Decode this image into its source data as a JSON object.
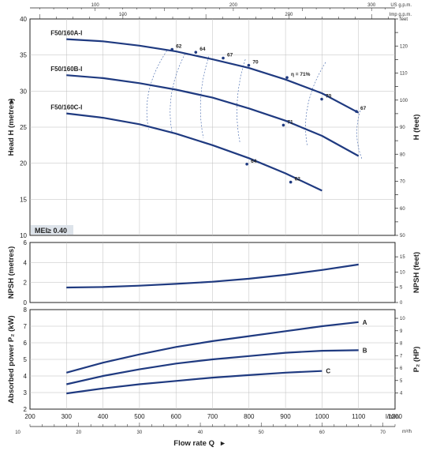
{
  "chart_data": [
    {
      "type": "line",
      "name": "head",
      "xlabel": "",
      "ylabel": "Head H  (metres)",
      "y2label": "H (feet)",
      "xlim": [
        200,
        1200
      ],
      "ylim": [
        10,
        40
      ],
      "y2lim": [
        50,
        130
      ],
      "yticks": [
        10,
        15,
        20,
        25,
        30,
        35,
        40
      ],
      "y2ticks": [
        50,
        55,
        60,
        65,
        70,
        75,
        80,
        85,
        90,
        95,
        100,
        105,
        110,
        115,
        120,
        125,
        130
      ],
      "y2tick_labels": [
        "50",
        "",
        "60",
        "",
        "70",
        "",
        "80",
        "",
        "90",
        "",
        "100",
        "",
        "110",
        "",
        "120",
        "",
        "feet"
      ],
      "top_axis_1": {
        "label": "US g.p.m.",
        "ticks": [
          100,
          200,
          300
        ]
      },
      "top_axis_2": {
        "label": "Imp g.p.m.",
        "ticks": [
          100,
          200
        ]
      },
      "series": [
        {
          "name": "F50/160A-I",
          "x": [
            300,
            400,
            500,
            600,
            700,
            800,
            900,
            1000,
            1100
          ],
          "y": [
            37.2,
            36.9,
            36.3,
            35.5,
            34.4,
            33.2,
            31.6,
            29.7,
            27.0
          ]
        },
        {
          "name": "F50/160B-I",
          "x": [
            300,
            400,
            500,
            600,
            700,
            800,
            900,
            1000,
            1100
          ],
          "y": [
            32.2,
            31.8,
            31.1,
            30.2,
            29.1,
            27.6,
            25.9,
            23.8,
            21.0
          ]
        },
        {
          "name": "F50/160C-I",
          "x": [
            300,
            400,
            500,
            600,
            700,
            800,
            900,
            1000
          ],
          "y": [
            26.9,
            26.3,
            25.4,
            24.1,
            22.5,
            20.7,
            18.6,
            16.2
          ]
        }
      ],
      "efficiency_labels": [
        {
          "text": "62",
          "x": 600,
          "y": 36.0
        },
        {
          "text": "64",
          "x": 665,
          "y": 35.6
        },
        {
          "text": "67",
          "x": 740,
          "y": 34.8
        },
        {
          "text": "70",
          "x": 810,
          "y": 33.8
        },
        {
          "text": "η = 71%",
          "x": 915,
          "y": 32.1
        },
        {
          "text": "70",
          "x": 1010,
          "y": 29.1
        },
        {
          "text": "67",
          "x": 1105,
          "y": 27.4
        },
        {
          "text": "71",
          "x": 905,
          "y": 25.5
        },
        {
          "text": "64",
          "x": 805,
          "y": 20.1
        },
        {
          "text": "62",
          "x": 925,
          "y": 17.6
        }
      ],
      "mei_label": "MEI≥ 0.40"
    },
    {
      "type": "line",
      "name": "npsh",
      "ylabel": "NPSH  (metres)",
      "y2label": "NPSH  (feet)",
      "xlim": [
        200,
        1200
      ],
      "ylim": [
        0,
        6
      ],
      "y2lim": [
        0,
        19.7
      ],
      "yticks": [
        0,
        2,
        4,
        6
      ],
      "y2ticks": [
        0,
        5,
        10,
        15
      ],
      "series": [
        {
          "name": "",
          "x": [
            300,
            400,
            500,
            600,
            700,
            800,
            900,
            1000,
            1100
          ],
          "y": [
            1.5,
            1.55,
            1.68,
            1.86,
            2.08,
            2.38,
            2.77,
            3.25,
            3.8
          ]
        }
      ]
    },
    {
      "type": "line",
      "name": "power",
      "ylabel": "Absorbed power  P₂  (kW)",
      "y2label": "P₂  (HP)",
      "xlim": [
        200,
        1200
      ],
      "ylim": [
        2,
        8
      ],
      "y2lim": [
        2.7,
        10.7
      ],
      "yticks": [
        2,
        3,
        4,
        5,
        6,
        7,
        8
      ],
      "y2ticks": [
        4,
        5,
        6,
        7,
        8,
        9,
        10
      ],
      "series": [
        {
          "name": "A",
          "x": [
            300,
            400,
            500,
            600,
            700,
            800,
            900,
            1000,
            1100
          ],
          "y": [
            4.2,
            4.8,
            5.3,
            5.75,
            6.1,
            6.4,
            6.7,
            7.0,
            7.25
          ]
        },
        {
          "name": "B",
          "x": [
            300,
            400,
            500,
            600,
            700,
            800,
            900,
            1000,
            1100
          ],
          "y": [
            3.5,
            4.0,
            4.4,
            4.75,
            5.0,
            5.2,
            5.4,
            5.52,
            5.55
          ]
        },
        {
          "name": "C",
          "x": [
            300,
            400,
            500,
            600,
            700,
            800,
            900,
            1000
          ],
          "y": [
            2.95,
            3.25,
            3.5,
            3.7,
            3.9,
            4.05,
            4.2,
            4.3
          ]
        }
      ]
    }
  ],
  "x_axis": {
    "unit": "l/min",
    "ticks": [
      200,
      300,
      400,
      500,
      600,
      700,
      800,
      900,
      1000,
      1100,
      1200
    ],
    "m3h_unit": "m³/h",
    "m3h_ticks": [
      10,
      20,
      30,
      40,
      50,
      60,
      70
    ],
    "title": "Flow rate  Q"
  },
  "colors": {
    "curve": "#1f3a80",
    "axis": "#222222",
    "grid": "#bdbdbd",
    "eff": "#3a5fa8"
  }
}
